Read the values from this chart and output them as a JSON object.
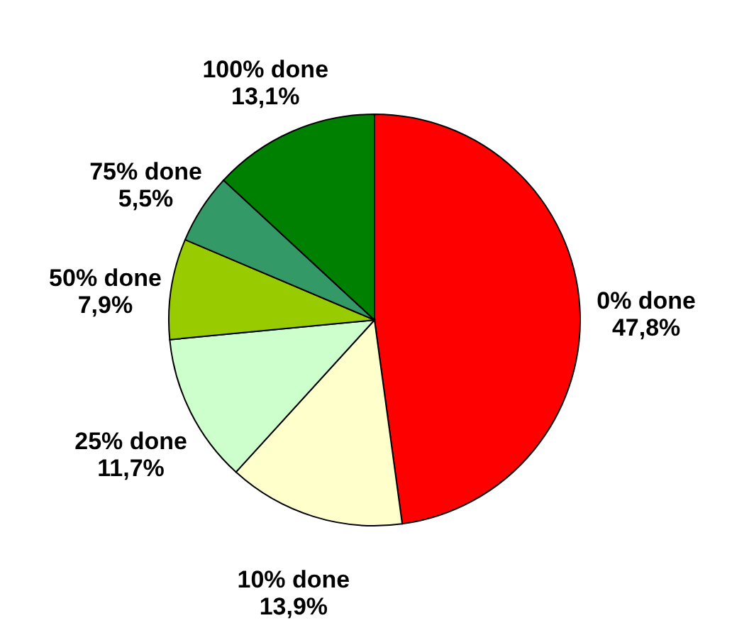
{
  "chart_data": {
    "type": "pie",
    "categories": [
      "0% done",
      "10% done",
      "25% done",
      "50% done",
      "75% done",
      "100% done"
    ],
    "values": [
      47.8,
      13.9,
      11.7,
      7.9,
      5.5,
      13.1
    ],
    "value_labels": [
      "47,8%",
      "13,9%",
      "11,7%",
      "7,9%",
      "5,5%",
      "13,1%"
    ],
    "colors": [
      "#ff0000",
      "#ffffcc",
      "#ccffcc",
      "#99cc00",
      "#339966",
      "#008000"
    ]
  }
}
